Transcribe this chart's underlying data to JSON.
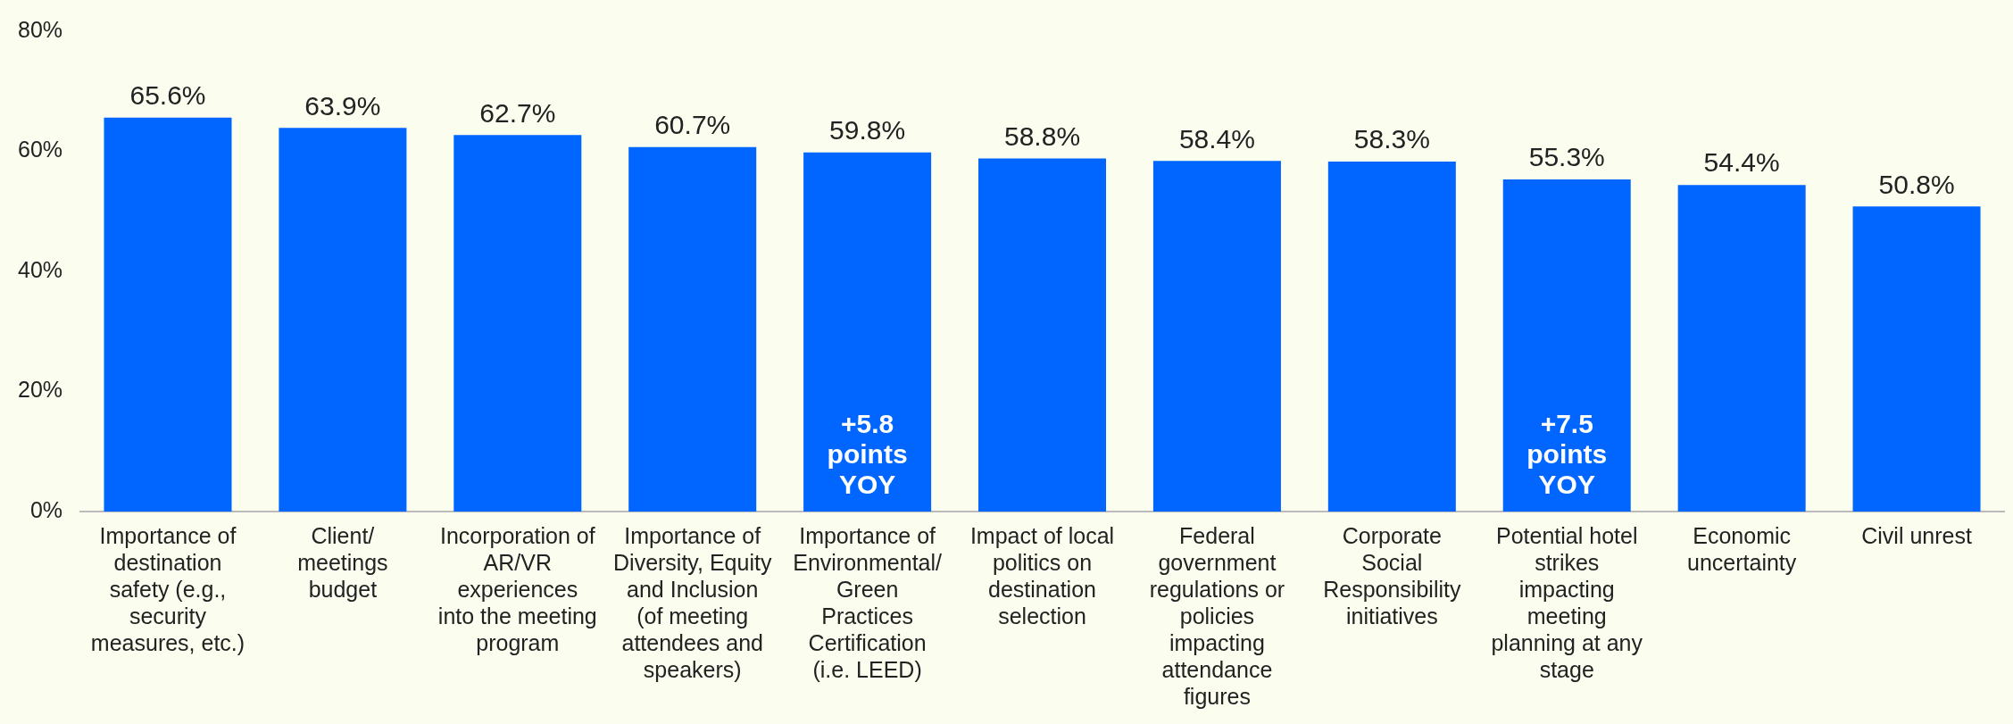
{
  "chart_data": {
    "type": "bar",
    "categories": [
      "Importance of destination safety (e.g., security measures, etc.)",
      "Client/ meetings budget",
      "Incorporation of AR/VR experiences into the meeting program",
      "Importance of Diversity, Equity and Inclusion (of meeting attendees and speakers)",
      "Importance of Environmental/ Green Practices Certification (i.e. LEED)",
      "Impact of local politics on destination selection",
      "Federal government regulations or policies impacting attendance figures",
      "Corporate Social Responsibility initiatives",
      "Potential hotel strikes impacting meeting planning at any stage",
      "Economic uncertainty",
      "Civil unrest"
    ],
    "values": [
      65.6,
      63.9,
      62.7,
      60.7,
      59.8,
      58.8,
      58.4,
      58.3,
      55.3,
      54.4,
      50.8
    ],
    "value_labels": [
      "65.6%",
      "63.9%",
      "62.7%",
      "60.7%",
      "59.8%",
      "58.8%",
      "58.4%",
      "58.3%",
      "55.3%",
      "54.4%",
      "50.8%"
    ],
    "color": "#0066ff",
    "ylim": [
      0,
      80
    ],
    "yticks": [
      {
        "value": 0,
        "label": "0%"
      },
      {
        "value": 20,
        "label": "20%"
      },
      {
        "value": 40,
        "label": "40%"
      },
      {
        "value": 60,
        "label": "60%"
      },
      {
        "value": 80,
        "label": "80%"
      }
    ],
    "grid": false,
    "legend": false,
    "annotations": [
      "+5.8 points YOY",
      "+7.5 points YOY"
    ]
  }
}
